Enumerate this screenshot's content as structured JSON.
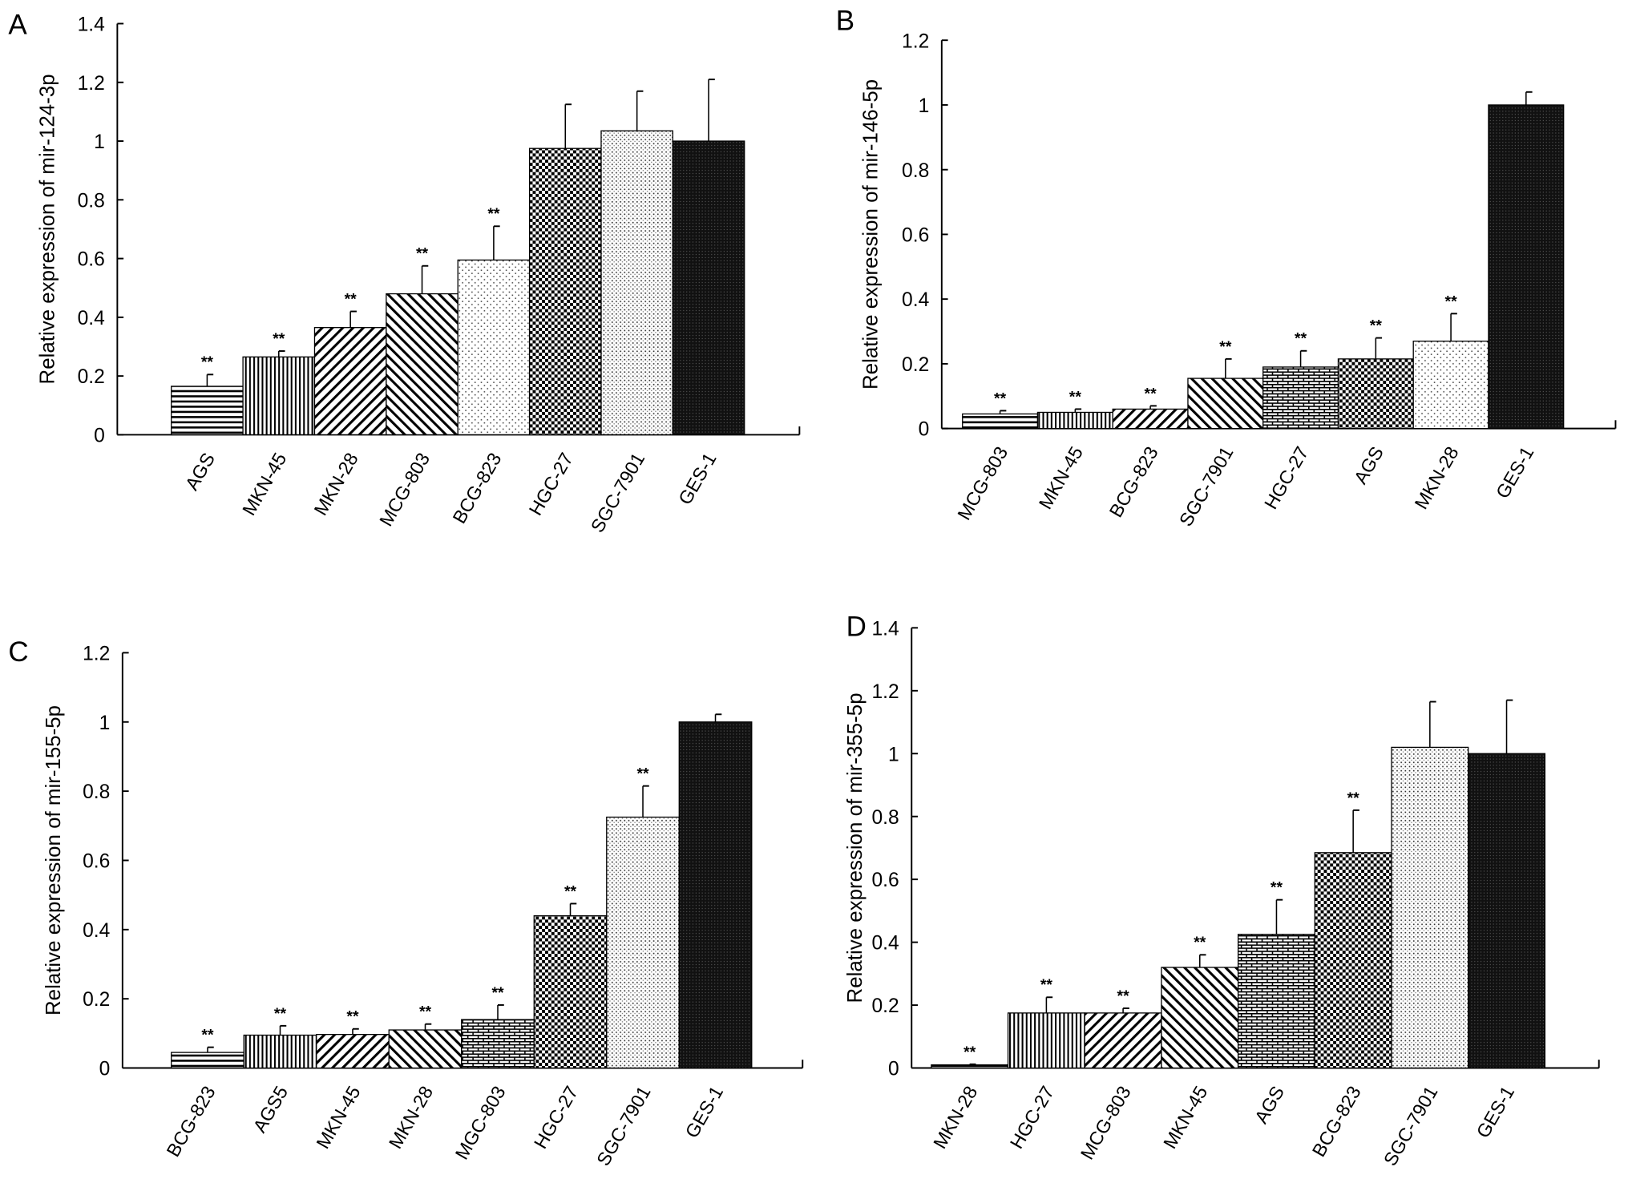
{
  "chart_data": [
    {
      "type": "bar",
      "panel": "A",
      "title": "",
      "xlabel": "",
      "ylabel": "Relative expression of mir-124-3p",
      "ylim": [
        0,
        1.4
      ],
      "yticks": [
        "0",
        "0.2",
        "0.4",
        "0.6",
        "0.8",
        "1",
        "1.2",
        "1.4"
      ],
      "categories": [
        "AGS",
        "MKN-45",
        "MKN-28",
        "MCG-803",
        "BCG-823",
        "HGC-27",
        "SGC-7901",
        "GES-1"
      ],
      "values": [
        0.165,
        0.265,
        0.365,
        0.48,
        0.595,
        0.975,
        1.035,
        1.0
      ],
      "error_upper": [
        0.205,
        0.285,
        0.42,
        0.575,
        0.71,
        1.125,
        1.17,
        1.21
      ],
      "significance": [
        "**",
        "**",
        "**",
        "**",
        "**",
        "",
        "",
        ""
      ],
      "patterns": [
        "hlines",
        "vlines",
        "diagR",
        "diagL",
        "dots",
        "checker",
        "fine",
        "dark"
      ]
    },
    {
      "type": "bar",
      "panel": "B",
      "title": "",
      "xlabel": "",
      "ylabel": "Relative expression of mir-146-5p",
      "ylim": [
        0,
        1.2
      ],
      "yticks": [
        "0",
        "0.2",
        "0.4",
        "0.6",
        "0.8",
        "1",
        "1.2"
      ],
      "categories": [
        "MCG-803",
        "MKN-45",
        "BCG-823",
        "SGC-7901",
        "HGC-27",
        "AGS",
        "MKN-28",
        "GES-1"
      ],
      "values": [
        0.045,
        0.05,
        0.06,
        0.155,
        0.19,
        0.215,
        0.27,
        1.0
      ],
      "error_upper": [
        0.055,
        0.06,
        0.07,
        0.215,
        0.24,
        0.28,
        0.355,
        1.04
      ],
      "significance": [
        "**",
        "**",
        "**",
        "**",
        "**",
        "**",
        "**",
        ""
      ],
      "patterns": [
        "hlines",
        "vlines",
        "diagR",
        "diagL",
        "brick",
        "checker",
        "dots",
        "dark"
      ]
    },
    {
      "type": "bar",
      "panel": "C",
      "title": "",
      "xlabel": "",
      "ylabel": "Relative expression of mir-155-5p",
      "ylim": [
        0,
        1.2
      ],
      "yticks": [
        "0",
        "0.2",
        "0.4",
        "0.6",
        "0.8",
        "1",
        "1.2"
      ],
      "categories": [
        "BCG-823",
        "AGS5",
        "MKN-45",
        "MKN-28",
        "MGC-803",
        "HGC-27",
        "SGC-7901",
        "GES-1"
      ],
      "values": [
        0.045,
        0.095,
        0.097,
        0.11,
        0.14,
        0.44,
        0.725,
        1.0
      ],
      "error_upper": [
        0.06,
        0.122,
        0.113,
        0.127,
        0.182,
        0.475,
        0.815,
        1.022
      ],
      "significance": [
        "**",
        "**",
        "**",
        "**",
        "**",
        "**",
        "**",
        ""
      ],
      "patterns": [
        "hlines",
        "vlines",
        "diagR",
        "diagL",
        "brick",
        "checker",
        "fine",
        "dark"
      ]
    },
    {
      "type": "bar",
      "panel": "D",
      "title": "",
      "xlabel": "",
      "ylabel": "Relative expression of mir-355-5p",
      "ylim": [
        0,
        1.4
      ],
      "yticks": [
        "0",
        "0.2",
        "0.4",
        "0.6",
        "0.8",
        "1",
        "1.2",
        "1.4"
      ],
      "categories": [
        "MKN-28",
        "HGC-27",
        "MCG-803",
        "MKN-45",
        "AGS",
        "BCG-823",
        "SGC-7901",
        "GES-1"
      ],
      "values": [
        0.01,
        0.175,
        0.175,
        0.32,
        0.425,
        0.685,
        1.02,
        1.0
      ],
      "error_upper": [
        0.012,
        0.225,
        0.19,
        0.36,
        0.535,
        0.82,
        1.165,
        1.17
      ],
      "significance": [
        "**",
        "**",
        "**",
        "**",
        "**",
        "**",
        "",
        ""
      ],
      "patterns": [
        "hlines",
        "vlines",
        "diagR",
        "diagL",
        "brick",
        "checker",
        "fine",
        "dark"
      ]
    }
  ]
}
